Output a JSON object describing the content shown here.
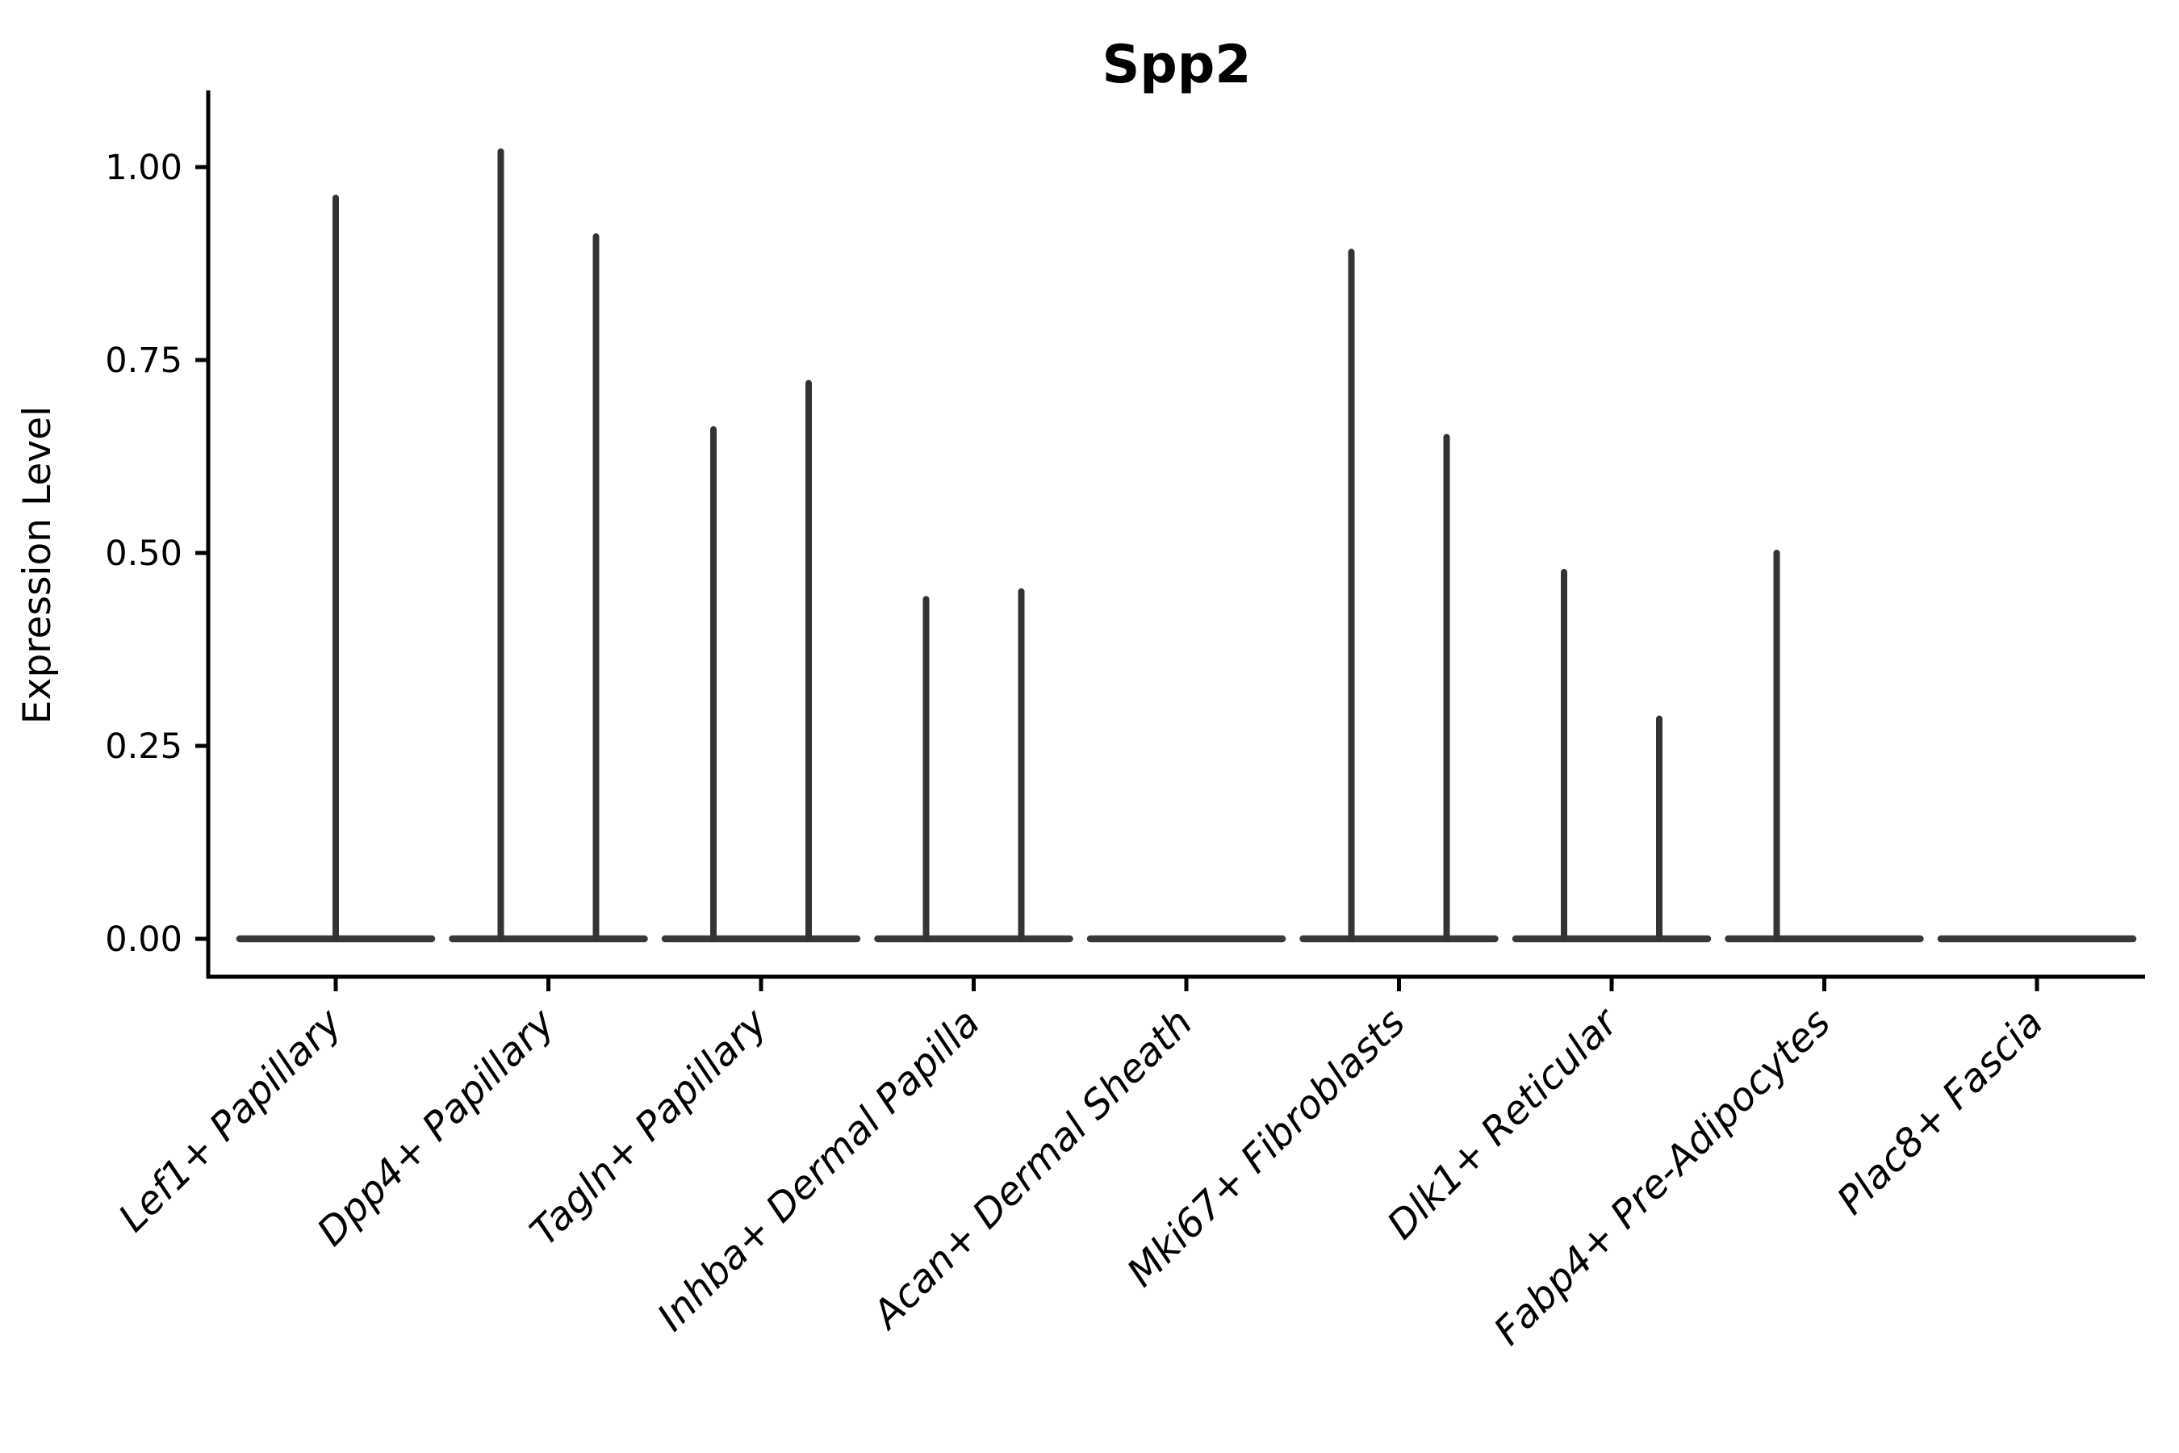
{
  "chart_data": {
    "type": "violin",
    "title": "Spp2",
    "ylabel": "Expression Level",
    "xlabel": "",
    "ylim": [
      0,
      1.08
    ],
    "grid": false,
    "legend": null,
    "yticks": [
      {
        "value": 0.0,
        "label": "0.00"
      },
      {
        "value": 0.25,
        "label": "0.25"
      },
      {
        "value": 0.5,
        "label": "0.50"
      },
      {
        "value": 0.75,
        "label": "0.75"
      },
      {
        "value": 1.0,
        "label": "1.00"
      }
    ],
    "categories": [
      "Lef1+ Papillary",
      "Dpp4+ Papillary",
      "Tagln+ Papillary",
      "Inhba+ Dermal Papilla",
      "Acan+ Dermal Sheath",
      "Mki67+ Fibroblasts",
      "Dlk1+ Reticular",
      "Fabp4+ Pre-Adipocytes",
      "Plac8+ Fascia"
    ],
    "series": [
      {
        "category": "Lef1+ Papillary",
        "baseline_at_zero": true,
        "violins": [
          {
            "slot": "center",
            "max_expression": 0.96
          }
        ]
      },
      {
        "category": "Dpp4+ Papillary",
        "baseline_at_zero": true,
        "violins": [
          {
            "slot": "left",
            "max_expression": 1.02
          },
          {
            "slot": "right",
            "max_expression": 0.91
          }
        ]
      },
      {
        "category": "Tagln+ Papillary",
        "baseline_at_zero": true,
        "violins": [
          {
            "slot": "left",
            "max_expression": 0.66
          },
          {
            "slot": "right",
            "max_expression": 0.72
          }
        ]
      },
      {
        "category": "Inhba+ Dermal Papilla",
        "baseline_at_zero": true,
        "violins": [
          {
            "slot": "left",
            "max_expression": 0.44
          },
          {
            "slot": "right",
            "max_expression": 0.45
          }
        ]
      },
      {
        "category": "Acan+ Dermal Sheath",
        "baseline_at_zero": true,
        "violins": []
      },
      {
        "category": "Mki67+ Fibroblasts",
        "baseline_at_zero": true,
        "violins": [
          {
            "slot": "left",
            "max_expression": 0.89
          },
          {
            "slot": "right",
            "max_expression": 0.65
          }
        ]
      },
      {
        "category": "Dlk1+ Reticular",
        "baseline_at_zero": true,
        "violins": [
          {
            "slot": "left",
            "max_expression": 0.475
          },
          {
            "slot": "right",
            "max_expression": 0.285
          }
        ]
      },
      {
        "category": "Fabp4+ Pre-Adipocytes",
        "baseline_at_zero": true,
        "violins": [
          {
            "slot": "left",
            "max_expression": 0.5
          }
        ]
      },
      {
        "category": "Plac8+ Fascia",
        "baseline_at_zero": true,
        "violins": []
      }
    ],
    "colors": {
      "violin_stroke": "#333333",
      "baseline_stroke": "#383838",
      "axis": "#000000",
      "background": "#ffffff"
    }
  }
}
